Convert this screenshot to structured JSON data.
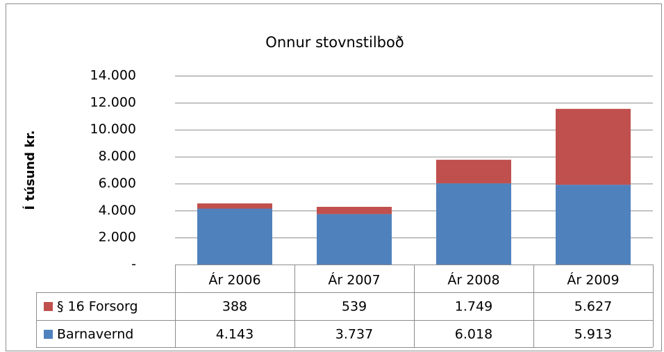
{
  "chart_data": {
    "type": "stacked_bar",
    "title": "Onnur stovnstilboð",
    "y_label": "Í túsund kr.",
    "categories": [
      "Ár 2006",
      "Ár 2007",
      "Ár 2008",
      "Ár 2009"
    ],
    "series": [
      {
        "name": "Barnavernd",
        "color": "#4f81bd",
        "values": [
          4143,
          3737,
          6018,
          5913
        ],
        "value_labels": [
          "4.143",
          "3.737",
          "6.018",
          "5.913"
        ]
      },
      {
        "name": "§ 16 Forsorg",
        "color": "#c0504d",
        "values": [
          388,
          539,
          1749,
          5627
        ],
        "value_labels": [
          "388",
          "539",
          "1.749",
          "5.627"
        ]
      }
    ],
    "ylim": [
      0,
      14000
    ],
    "yticks": [
      {
        "value": 0,
        "label": "-"
      },
      {
        "value": 2000,
        "label": "2.000"
      },
      {
        "value": 4000,
        "label": "4.000"
      },
      {
        "value": 6000,
        "label": "6.000"
      },
      {
        "value": 8000,
        "label": "8.000"
      },
      {
        "value": 10000,
        "label": "10.000"
      },
      {
        "value": 12000,
        "label": "12.000"
      },
      {
        "value": 14000,
        "label": "14.000"
      }
    ],
    "grid": true
  }
}
